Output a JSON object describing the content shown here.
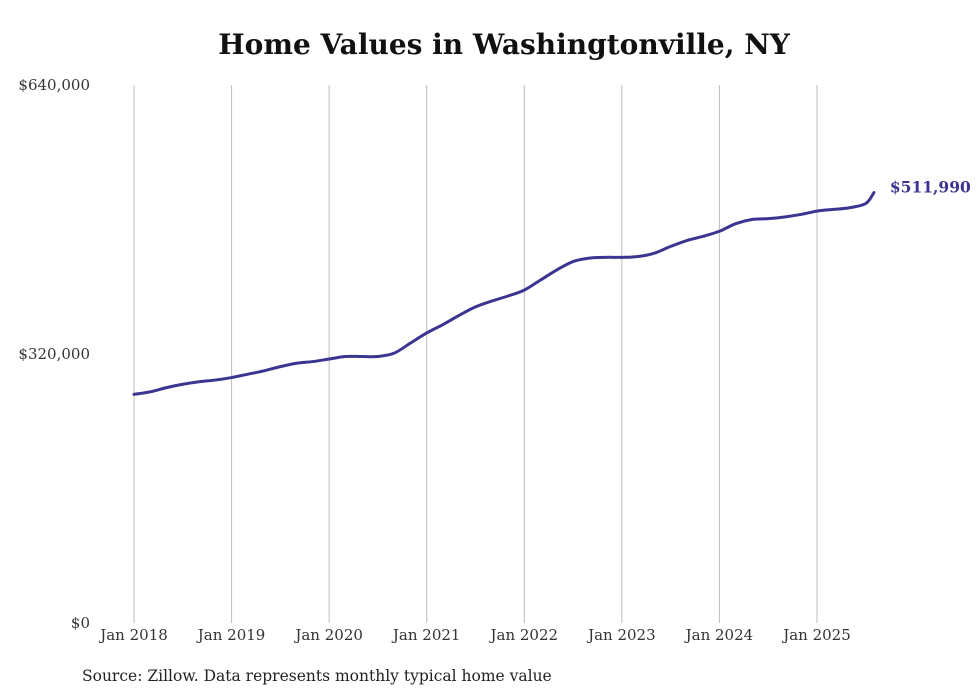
{
  "title": "Home Values in Washingtonville, NY",
  "source_note": "Source: Zillow. Data represents monthly typical home value",
  "colors": {
    "line": "#3b3591",
    "grid": "#bdbdbd",
    "text": "#333333"
  },
  "chart_data": {
    "type": "line",
    "title": "Home Values in Washingtonville, NY",
    "xlabel": "",
    "ylabel": "",
    "grid": "vertical",
    "ylim": [
      0,
      640000
    ],
    "y_ticks": [
      {
        "value": 0,
        "label": "$0"
      },
      {
        "value": 320000,
        "label": "$320,000"
      },
      {
        "value": 640000,
        "label": "$640,000"
      }
    ],
    "x_ticks": [
      {
        "date": "2018-01",
        "label": "Jan 2018"
      },
      {
        "date": "2019-01",
        "label": "Jan 2019"
      },
      {
        "date": "2020-01",
        "label": "Jan 2020"
      },
      {
        "date": "2021-01",
        "label": "Jan 2021"
      },
      {
        "date": "2022-01",
        "label": "Jan 2022"
      },
      {
        "date": "2023-01",
        "label": "Jan 2023"
      },
      {
        "date": "2024-01",
        "label": "Jan 2024"
      },
      {
        "date": "2025-01",
        "label": "Jan 2025"
      }
    ],
    "x_range": [
      "2018-01",
      "2025-08"
    ],
    "series": [
      {
        "x": [
          "2018-01",
          "2018-03",
          "2018-05",
          "2018-07",
          "2018-09",
          "2018-11",
          "2019-01",
          "2019-03",
          "2019-05",
          "2019-07",
          "2019-09",
          "2019-11",
          "2020-01",
          "2020-03",
          "2020-05",
          "2020-07",
          "2020-09",
          "2020-11",
          "2021-01",
          "2021-03",
          "2021-05",
          "2021-07",
          "2021-09",
          "2021-11",
          "2022-01",
          "2022-03",
          "2022-05",
          "2022-07",
          "2022-09",
          "2022-11",
          "2023-01",
          "2023-03",
          "2023-05",
          "2023-07",
          "2023-09",
          "2023-11",
          "2024-01",
          "2024-03",
          "2024-05",
          "2024-07",
          "2024-09",
          "2024-11",
          "2025-01",
          "2025-03",
          "2025-05",
          "2025-07",
          "2025-08"
        ],
        "values": [
          272000,
          275000,
          280000,
          284000,
          287000,
          289000,
          292000,
          296000,
          300000,
          305000,
          309000,
          311000,
          314000,
          317000,
          317000,
          317000,
          321000,
          333000,
          345000,
          355000,
          366000,
          376000,
          383000,
          389000,
          396000,
          408000,
          420000,
          430000,
          434000,
          435000,
          435000,
          436000,
          440000,
          448000,
          455000,
          460000,
          466000,
          475000,
          480000,
          481000,
          483000,
          486000,
          490000,
          492000,
          494000,
          499000,
          511990
        ]
      }
    ],
    "end_label": "$511,990"
  }
}
